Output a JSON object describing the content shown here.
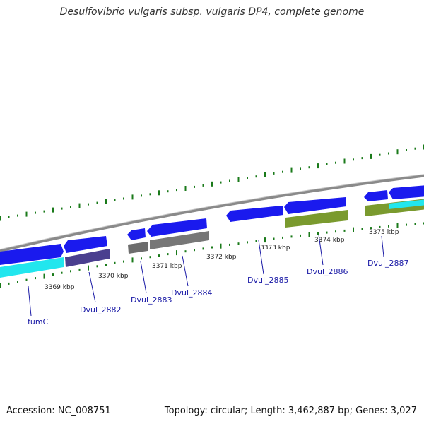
{
  "title": "Desulfovibrio vulgaris subsp. vulgaris DP4, complete genome",
  "footer": {
    "accession": "Accession: NC_008751",
    "stats": "Topology: circular; Length: 3,462,887 bp; Genes: 3,027"
  },
  "colors": {
    "cds_forward": "#1a1aee",
    "cds_highlight": "#22e6ee",
    "dvul_2882_lower": "#4a3f8f",
    "dvul_2883_lower": "#6d6d6d",
    "dvul_2884_lower": "#777777",
    "dvul_2886_lower": "#7a9a2e",
    "dvul_2887_lower": "#7a9a2e",
    "backbone": "#8a8a8a",
    "gc_skew_marks": "#1a7a1a",
    "scale_marks": "#1a7a1a",
    "gene_labels": "#1a1aa6"
  },
  "scale_labels": [
    "3369 kbp",
    "3370 kbp",
    "3371 kbp",
    "3372 kbp",
    "3373 kbp",
    "3374 kbp",
    "3375 kbp"
  ],
  "gene_labels": [
    "fumC",
    "Dvul_2882",
    "Dvul_2883",
    "Dvul_2884",
    "Dvul_2885",
    "Dvul_2886",
    "Dvul_2887"
  ]
}
